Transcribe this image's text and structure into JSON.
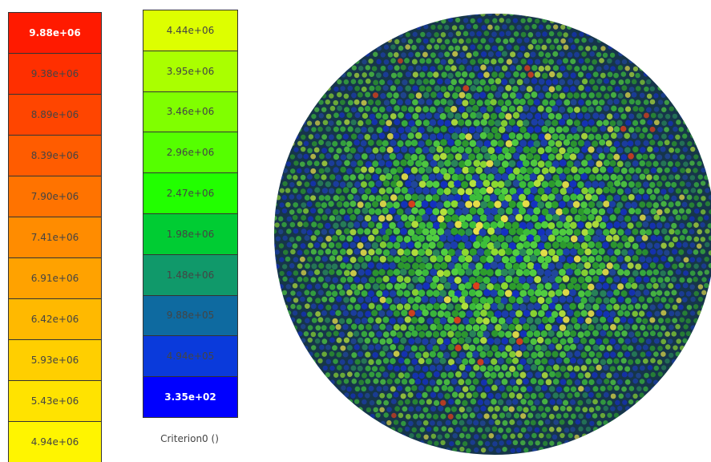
{
  "legend": {
    "left_column": [
      {
        "label": "9.88e+06",
        "color": "#ff1a00"
      },
      {
        "label": "9.38e+06",
        "color": "#ff2f00"
      },
      {
        "label": "8.89e+06",
        "color": "#ff4500"
      },
      {
        "label": "8.39e+06",
        "color": "#ff5c00"
      },
      {
        "label": "7.90e+06",
        "color": "#ff7300"
      },
      {
        "label": "7.41e+06",
        "color": "#ff8c00"
      },
      {
        "label": "6.91e+06",
        "color": "#ffa200"
      },
      {
        "label": "6.42e+06",
        "color": "#ffb900"
      },
      {
        "label": "5.93e+06",
        "color": "#ffcf00"
      },
      {
        "label": "5.43e+06",
        "color": "#ffe300"
      },
      {
        "label": "4.94e+06",
        "color": "#fff500"
      }
    ],
    "right_column": [
      {
        "label": "4.44e+06",
        "color": "#ddff00"
      },
      {
        "label": "3.95e+06",
        "color": "#aaff00"
      },
      {
        "label": "3.46e+06",
        "color": "#80ff00"
      },
      {
        "label": "2.96e+06",
        "color": "#55ff00"
      },
      {
        "label": "2.47e+06",
        "color": "#22ff00"
      },
      {
        "label": "1.98e+06",
        "color": "#00cc33"
      },
      {
        "label": "1.48e+06",
        "color": "#10996a"
      },
      {
        "label": "9.88e+05",
        "color": "#0e6aa0"
      },
      {
        "label": "4.94e+05",
        "color": "#0a3adb"
      },
      {
        "label": "3.35e+02",
        "color": "#0000ff"
      }
    ],
    "title": "Criterion0 ()"
  }
}
